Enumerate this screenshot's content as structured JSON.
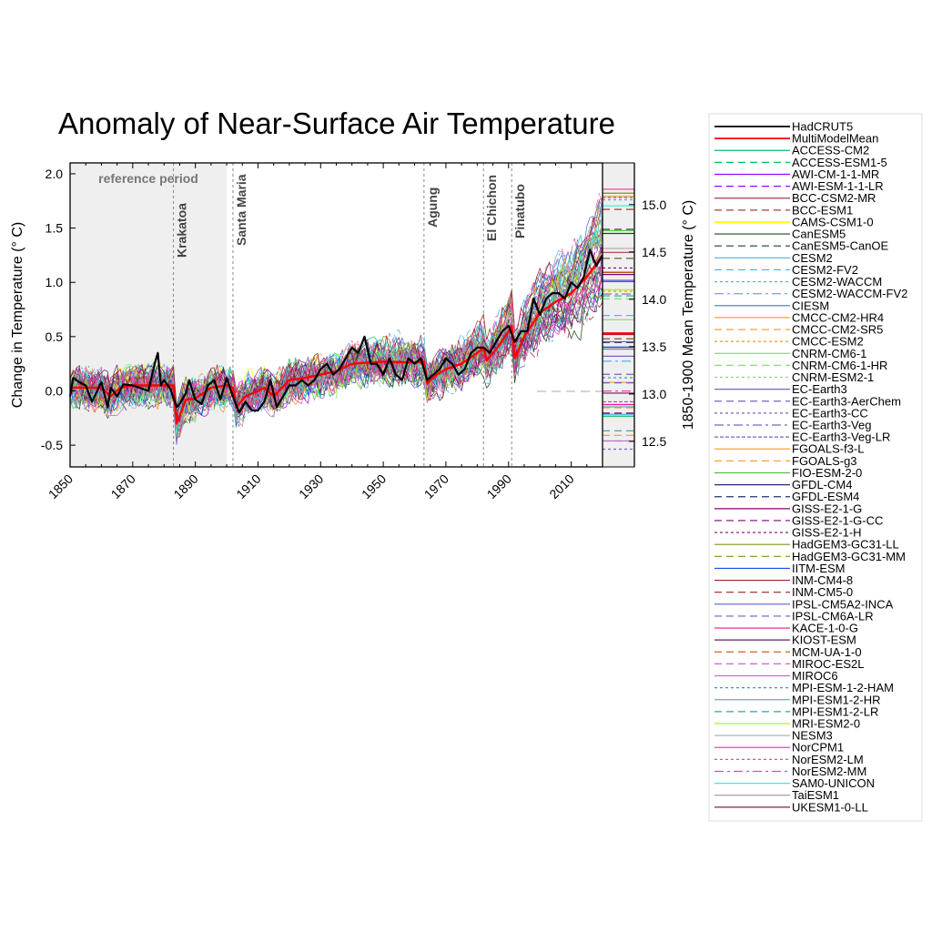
{
  "chart_data": {
    "type": "line",
    "title": "Anomaly of Near-Surface Air Temperature",
    "ylabel": "Change in Temperature (° C)",
    "ylabel_right": "1850-1900 Mean Temperature (° C)",
    "xlim": [
      1850,
      2020
    ],
    "ylim": [
      -0.7,
      2.1
    ],
    "ylim_right": [
      12.23,
      15.44
    ],
    "xticks": [
      1850,
      1870,
      1890,
      1910,
      1930,
      1950,
      1970,
      1990,
      2010
    ],
    "yticks": [
      "-0.5",
      "0.0",
      "0.5",
      "1.0",
      "1.5",
      "2.0"
    ],
    "yticks_right": [
      "12.5",
      "13.0",
      "13.5",
      "14.0",
      "14.5",
      "15.0"
    ],
    "grid": false,
    "legend_placement": "right",
    "reference_period": {
      "label": "reference period",
      "start": 1850,
      "end": 1900,
      "color": "#efefef"
    },
    "volcanoes": [
      {
        "name": "Krakatoa",
        "year": 1883
      },
      {
        "name": "Santa Maria",
        "year": 1902
      },
      {
        "name": "Agung",
        "year": 1963
      },
      {
        "name": "El Chichon",
        "year": 1982
      },
      {
        "name": "Pinatubo",
        "year": 1991
      }
    ],
    "series": [
      {
        "name": "HadCRUT5",
        "color": "#000000",
        "dash": "solid",
        "x": [
          1850,
          1851,
          1853,
          1855,
          1857,
          1860,
          1862,
          1863,
          1865,
          1867,
          1870,
          1873,
          1875,
          1877,
          1878,
          1879,
          1880,
          1882,
          1884,
          1885,
          1887,
          1888,
          1890,
          1892,
          1894,
          1896,
          1898,
          1900,
          1902,
          1904,
          1906,
          1908,
          1910,
          1912,
          1914,
          1916,
          1918,
          1920,
          1922,
          1924,
          1926,
          1928,
          1930,
          1932,
          1934,
          1936,
          1938,
          1940,
          1942,
          1944,
          1946,
          1948,
          1950,
          1952,
          1954,
          1956,
          1958,
          1960,
          1962,
          1964,
          1966,
          1968,
          1970,
          1972,
          1974,
          1976,
          1978,
          1980,
          1982,
          1984,
          1986,
          1988,
          1990,
          1992,
          1994,
          1996,
          1998,
          2000,
          2002,
          2004,
          2006,
          2008,
          2010,
          2012,
          2014,
          2016,
          2018,
          2020
        ],
        "y": [
          -0.05,
          0.12,
          0.08,
          0.05,
          -0.1,
          0.08,
          -0.15,
          0.03,
          -0.05,
          0.06,
          0.05,
          0.02,
          0.0,
          0.25,
          0.35,
          0.05,
          0.1,
          0.02,
          -0.15,
          -0.12,
          -0.02,
          0.1,
          -0.08,
          -0.12,
          0.05,
          0.1,
          -0.08,
          0.12,
          -0.05,
          -0.2,
          -0.1,
          -0.18,
          -0.18,
          -0.1,
          0.1,
          -0.15,
          -0.05,
          0.05,
          0.05,
          0.1,
          0.05,
          0.1,
          0.2,
          0.25,
          0.15,
          0.2,
          0.3,
          0.4,
          0.35,
          0.5,
          0.25,
          0.25,
          0.15,
          0.3,
          0.15,
          0.1,
          0.3,
          0.25,
          0.3,
          0.1,
          0.15,
          0.2,
          0.3,
          0.25,
          0.15,
          0.2,
          0.35,
          0.4,
          0.4,
          0.35,
          0.45,
          0.55,
          0.6,
          0.45,
          0.55,
          0.55,
          0.85,
          0.7,
          0.85,
          0.9,
          0.9,
          0.85,
          1.0,
          0.95,
          1.05,
          1.3,
          1.15,
          1.25
        ]
      },
      {
        "name": "MultiModelMean",
        "color": "#ff0000",
        "dash": "solid",
        "x": [
          1850,
          1860,
          1863,
          1866,
          1870,
          1878,
          1883,
          1884,
          1887,
          1890,
          1895,
          1900,
          1902,
          1903,
          1906,
          1910,
          1912,
          1915,
          1920,
          1925,
          1930,
          1935,
          1940,
          1950,
          1960,
          1963,
          1964,
          1967,
          1970,
          1975,
          1980,
          1982,
          1983,
          1987,
          1990,
          1991,
          1992,
          1995,
          2000,
          2005,
          2010,
          2015,
          2020
        ],
        "y": [
          0.03,
          0.03,
          -0.05,
          0.03,
          0.05,
          0.05,
          0.05,
          -0.3,
          -0.08,
          -0.07,
          0.03,
          0.05,
          0.03,
          -0.15,
          -0.05,
          0.0,
          0.03,
          -0.05,
          0.1,
          0.12,
          0.15,
          0.18,
          0.25,
          0.27,
          0.26,
          0.27,
          0.07,
          0.15,
          0.2,
          0.25,
          0.35,
          0.4,
          0.28,
          0.42,
          0.55,
          0.6,
          0.3,
          0.5,
          0.72,
          0.82,
          0.9,
          1.05,
          1.25
        ]
      }
    ],
    "models": [
      {
        "name": "ACCESS-CM2",
        "color": "#00c060",
        "dash": "solid"
      },
      {
        "name": "ACCESS-ESM1-5",
        "color": "#00c060",
        "dash": "dash"
      },
      {
        "name": "AWI-CM-1-1-MR",
        "color": "#a000ff",
        "dash": "solid"
      },
      {
        "name": "AWI-ESM-1-1-LR",
        "color": "#a000ff",
        "dash": "dash"
      },
      {
        "name": "BCC-CSM2-MR",
        "color": "#a04040",
        "dash": "solid"
      },
      {
        "name": "BCC-ESM1",
        "color": "#a04040",
        "dash": "dash"
      },
      {
        "name": "CAMS-CSM1-0",
        "color": "#ffff00",
        "dash": "solid"
      },
      {
        "name": "CanESM5",
        "color": "#1a4a1a",
        "dash": "solid"
      },
      {
        "name": "CanESM5-CanOE",
        "color": "#1a4a1a",
        "dash": "dash"
      },
      {
        "name": "CESM2",
        "color": "#40b0e0",
        "dash": "solid"
      },
      {
        "name": "CESM2-FV2",
        "color": "#40b0e0",
        "dash": "dash"
      },
      {
        "name": "CESM2-WACCM",
        "color": "#40b0e0",
        "dash": "dot"
      },
      {
        "name": "CESM2-WACCM-FV2",
        "color": "#40b0e0",
        "dash": "dashdot"
      },
      {
        "name": "CIESM",
        "color": "#4070d0",
        "dash": "solid"
      },
      {
        "name": "CMCC-CM2-HR4",
        "color": "#ff9020",
        "dash": "solid"
      },
      {
        "name": "CMCC-CM2-SR5",
        "color": "#ff9020",
        "dash": "dash"
      },
      {
        "name": "CMCC-ESM2",
        "color": "#ff9020",
        "dash": "dot"
      },
      {
        "name": "CNRM-CM6-1",
        "color": "#80e070",
        "dash": "solid"
      },
      {
        "name": "CNRM-CM6-1-HR",
        "color": "#80e070",
        "dash": "dash"
      },
      {
        "name": "CNRM-ESM2-1",
        "color": "#80e070",
        "dash": "dot"
      },
      {
        "name": "EC-Earth3",
        "color": "#8060c0",
        "dash": "solid"
      },
      {
        "name": "EC-Earth3-AerChem",
        "color": "#8060c0",
        "dash": "dash"
      },
      {
        "name": "EC-Earth3-CC",
        "color": "#8060c0",
        "dash": "dot"
      },
      {
        "name": "EC-Earth3-Veg",
        "color": "#8060c0",
        "dash": "dashdot"
      },
      {
        "name": "EC-Earth3-Veg-LR",
        "color": "#8060c0",
        "dash": "densedash"
      },
      {
        "name": "FGOALS-f3-L",
        "color": "#ffa030",
        "dash": "solid"
      },
      {
        "name": "FGOALS-g3",
        "color": "#ffa030",
        "dash": "dash"
      },
      {
        "name": "FIO-ESM-2-0",
        "color": "#50c040",
        "dash": "solid"
      },
      {
        "name": "GFDL-CM4",
        "color": "#203070",
        "dash": "solid"
      },
      {
        "name": "GFDL-ESM4",
        "color": "#203070",
        "dash": "dash"
      },
      {
        "name": "GISS-E2-1-G",
        "color": "#800080",
        "dash": "solid"
      },
      {
        "name": "GISS-E2-1-G-CC",
        "color": "#800080",
        "dash": "dash"
      },
      {
        "name": "GISS-E2-1-H",
        "color": "#800080",
        "dash": "dot"
      },
      {
        "name": "HadGEM3-GC31-LL",
        "color": "#809020",
        "dash": "solid"
      },
      {
        "name": "HadGEM3-GC31-MM",
        "color": "#809020",
        "dash": "dash"
      },
      {
        "name": "IITM-ESM",
        "color": "#1050e0",
        "dash": "solid"
      },
      {
        "name": "INM-CM4-8",
        "color": "#a02020",
        "dash": "solid"
      },
      {
        "name": "INM-CM5-0",
        "color": "#a02020",
        "dash": "dash"
      },
      {
        "name": "IPSL-CM5A2-INCA",
        "color": "#6060d0",
        "dash": "solid"
      },
      {
        "name": "IPSL-CM6A-LR",
        "color": "#6060d0",
        "dash": "dash"
      },
      {
        "name": "KACE-1-0-G",
        "color": "#ff1090",
        "dash": "solid"
      },
      {
        "name": "KIOST-ESM",
        "color": "#602060",
        "dash": "solid"
      },
      {
        "name": "MCM-UA-1-0",
        "color": "#d06020",
        "dash": "dash"
      },
      {
        "name": "MIROC-ES2L",
        "color": "#d060d0",
        "dash": "dash"
      },
      {
        "name": "MIROC6",
        "color": "#c070c0",
        "dash": "solid"
      },
      {
        "name": "MPI-ESM-1-2-HAM",
        "color": "#30a0a0",
        "dash": "dot"
      },
      {
        "name": "MPI-ESM1-2-HR",
        "color": "#60b0b0",
        "dash": "solid"
      },
      {
        "name": "MPI-ESM1-2-LR",
        "color": "#30a0a0",
        "dash": "dash"
      },
      {
        "name": "MRI-ESM2-0",
        "color": "#a0ff20",
        "dash": "solid"
      },
      {
        "name": "NESM3",
        "color": "#b0b0b0",
        "dash": "solid"
      },
      {
        "name": "NorCPM1",
        "color": "#ff40a0",
        "dash": "solid"
      },
      {
        "name": "NorESM2-LM",
        "color": "#ff40a0",
        "dash": "dot"
      },
      {
        "name": "NorESM2-MM",
        "color": "#ff40a0",
        "dash": "dashdot"
      },
      {
        "name": "SAM0-UNICON",
        "color": "#30f0d0",
        "dash": "solid"
      },
      {
        "name": "TaiESM1",
        "color": "#a0a0a0",
        "dash": "solid"
      },
      {
        "name": "UKESM1-0-LL",
        "color": "#802050",
        "dash": "solid"
      }
    ]
  }
}
